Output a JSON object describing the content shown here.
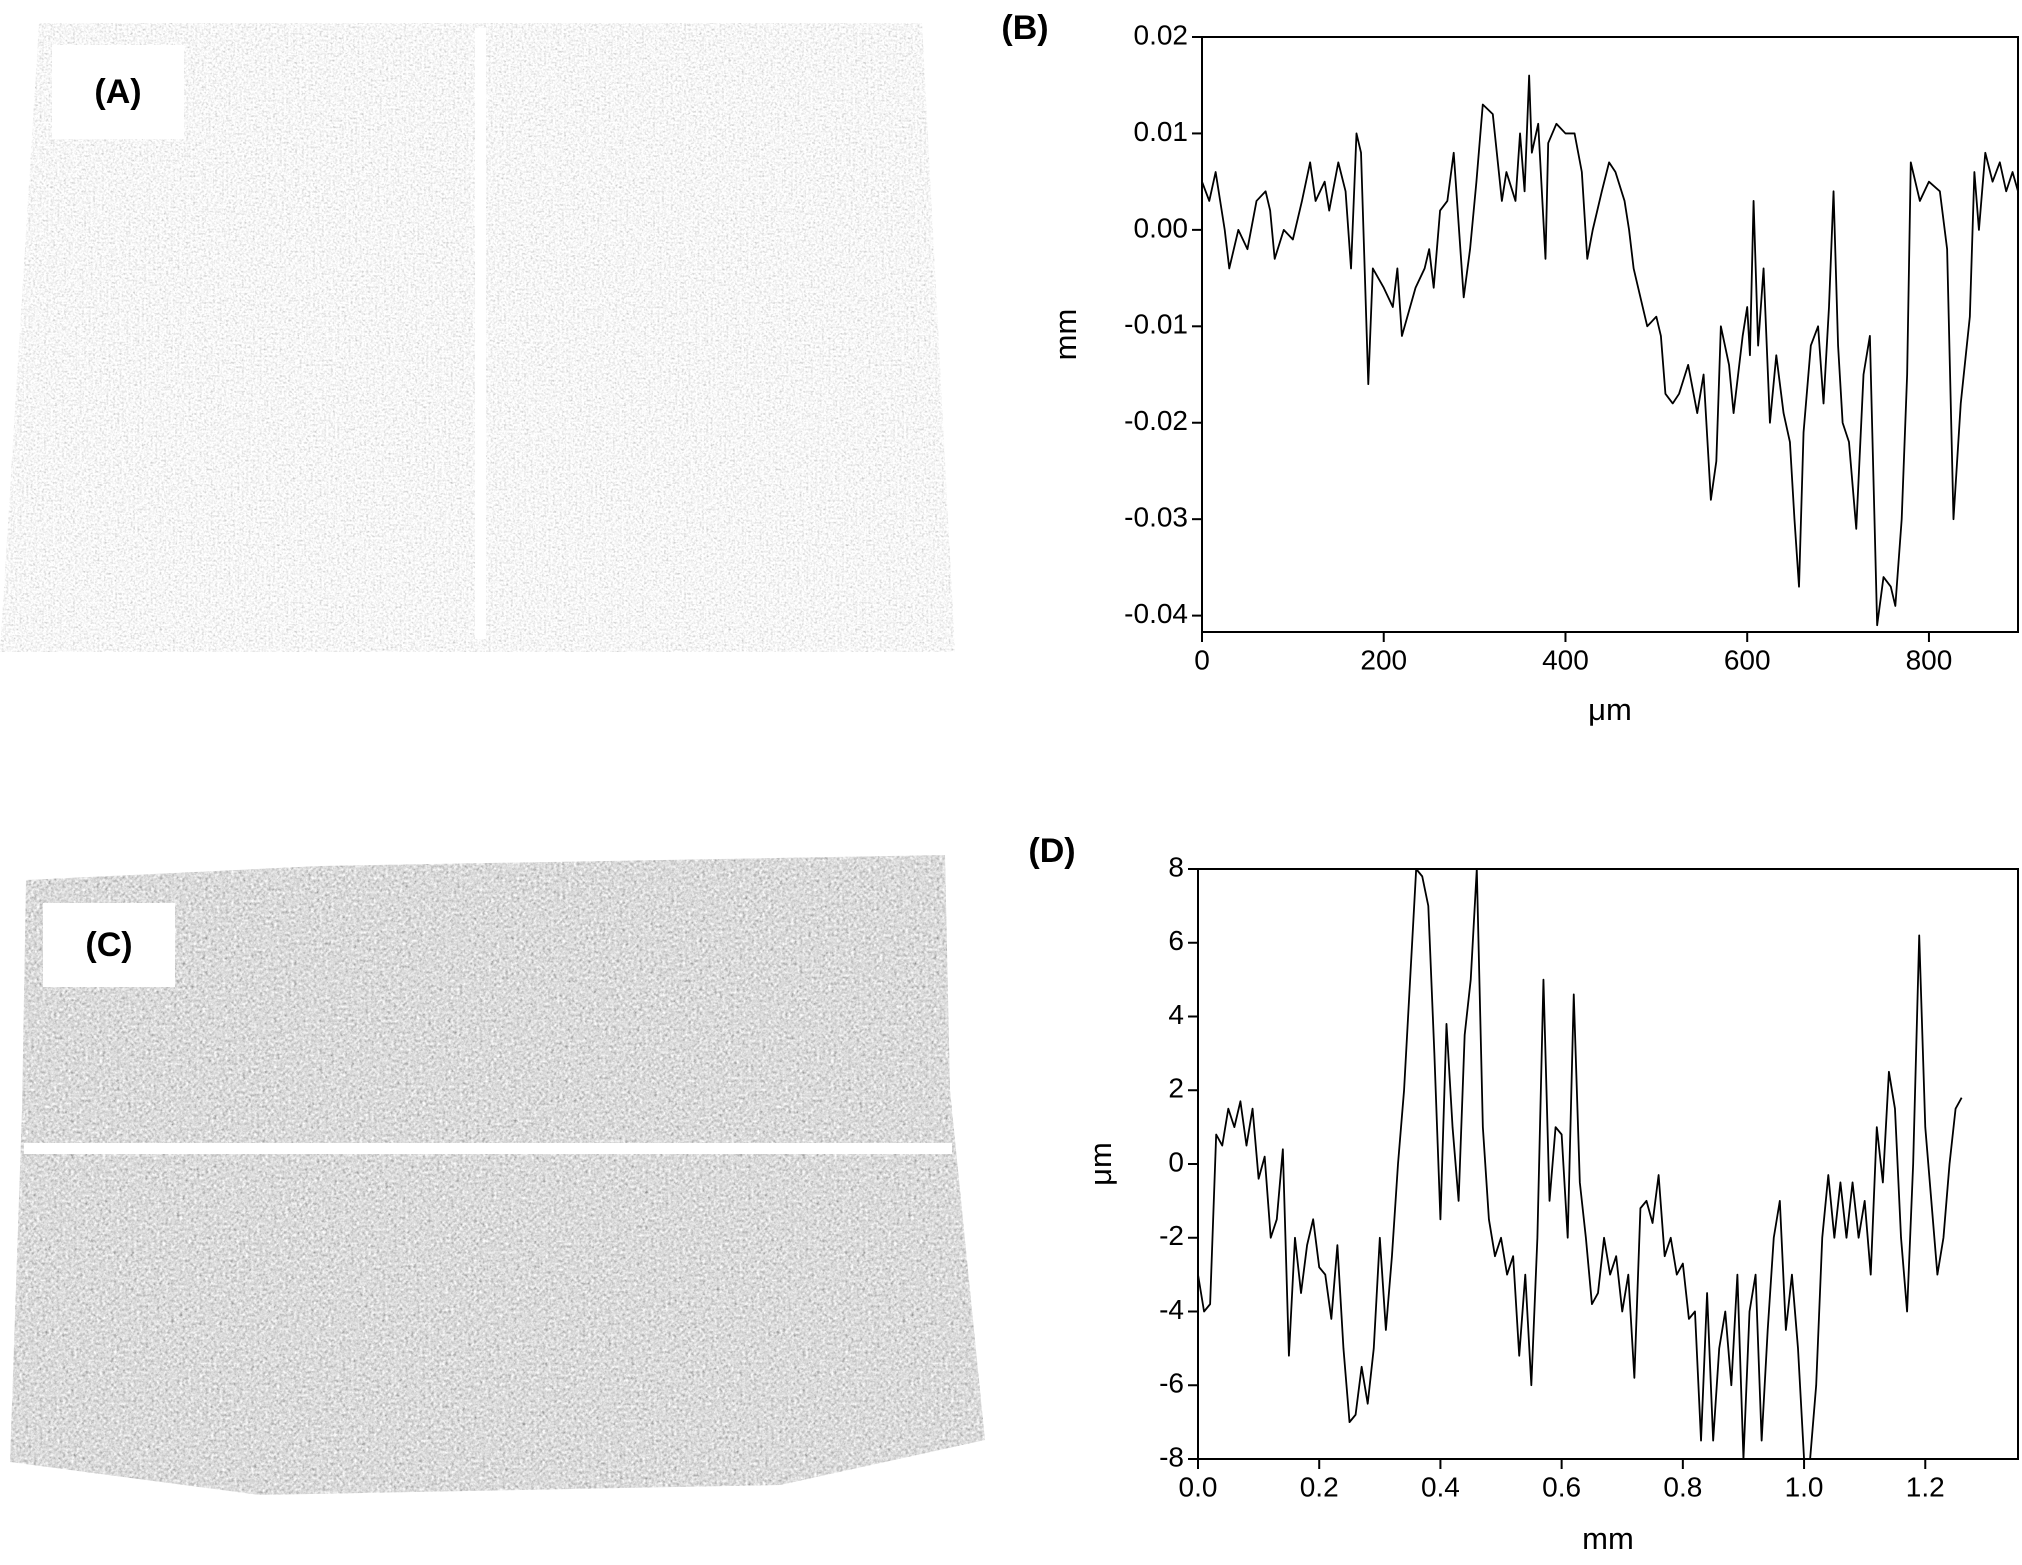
{
  "panels": [
    {
      "label": "(A)"
    },
    {
      "label": "(C)"
    }
  ],
  "chart_data": [
    {
      "type": "line",
      "title": "(B)",
      "xlabel": "μm",
      "ylabel": "mm",
      "color": "#000000",
      "xlim": [
        0,
        898
      ],
      "ylim": [
        -0.0417,
        0.02
      ],
      "xticks": [
        0,
        200,
        400,
        600,
        800
      ],
      "yticks": [
        0.02,
        0.01,
        {
          "value": 0,
          "label": "0.00"
        },
        -0.01,
        -0.02,
        -0.03,
        -0.04
      ],
      "x": [
        0,
        8,
        15,
        25,
        30,
        40,
        50,
        60,
        70,
        75,
        80,
        90,
        100,
        110,
        119,
        125,
        135,
        140,
        150,
        158,
        164,
        170,
        175,
        183,
        188,
        200,
        210,
        215,
        220,
        235,
        245,
        250,
        255,
        262,
        270,
        277,
        288,
        295,
        302,
        309,
        320,
        330,
        335,
        345,
        350,
        355,
        360,
        363,
        370,
        378,
        381,
        390,
        400,
        410,
        418,
        424,
        430,
        440,
        448,
        455,
        465,
        470,
        475,
        485,
        490,
        500,
        505,
        510,
        518,
        525,
        535,
        545,
        552,
        560,
        566,
        571,
        580,
        585,
        595,
        600,
        603,
        607,
        612,
        618,
        625,
        632,
        640,
        647,
        652,
        657,
        662,
        670,
        678,
        684,
        690,
        695,
        700,
        705,
        712,
        720,
        728,
        735,
        743,
        750,
        758,
        763,
        770,
        776,
        780,
        790,
        800,
        812,
        820,
        827,
        835,
        845,
        850,
        855,
        862,
        870,
        878,
        885,
        892,
        898
      ],
      "values": [
        0.005,
        0.003,
        0.006,
        0.0,
        -0.004,
        0.0,
        -0.002,
        0.003,
        0.004,
        0.002,
        -0.003,
        0.0,
        -0.001,
        0.003,
        0.007,
        0.003,
        0.005,
        0.002,
        0.007,
        0.004,
        -0.004,
        0.01,
        0.008,
        -0.016,
        -0.004,
        -0.006,
        -0.008,
        -0.004,
        -0.011,
        -0.006,
        -0.004,
        -0.002,
        -0.006,
        0.002,
        0.003,
        0.008,
        -0.007,
        -0.002,
        0.005,
        0.013,
        0.012,
        0.003,
        0.006,
        0.003,
        0.01,
        0.004,
        0.016,
        0.008,
        0.011,
        -0.003,
        0.009,
        0.011,
        0.01,
        0.01,
        0.006,
        -0.003,
        0.0,
        0.004,
        0.007,
        0.006,
        0.003,
        0.0,
        -0.004,
        -0.008,
        -0.01,
        -0.009,
        -0.011,
        -0.017,
        -0.018,
        -0.017,
        -0.014,
        -0.019,
        -0.015,
        -0.028,
        -0.024,
        -0.01,
        -0.014,
        -0.019,
        -0.011,
        -0.008,
        -0.013,
        0.003,
        -0.012,
        -0.004,
        -0.02,
        -0.013,
        -0.019,
        -0.022,
        -0.03,
        -0.037,
        -0.021,
        -0.012,
        -0.01,
        -0.018,
        -0.008,
        0.004,
        -0.012,
        -0.02,
        -0.022,
        -0.031,
        -0.015,
        -0.011,
        -0.041,
        -0.036,
        -0.037,
        -0.039,
        -0.03,
        -0.015,
        0.007,
        0.003,
        0.005,
        0.004,
        -0.002,
        -0.03,
        -0.018,
        -0.009,
        0.006,
        0.0,
        0.008,
        0.005,
        0.007,
        0.004,
        0.006,
        0.004
      ]
    },
    {
      "type": "line",
      "title": "(D)",
      "xlabel": "mm",
      "ylabel": "μm",
      "color": "#000000",
      "xlim": [
        0,
        1.353
      ],
      "ylim": [
        -8,
        8
      ],
      "xticks": [
        {
          "value": 0,
          "label": "0.0"
        },
        0.2,
        0.4,
        0.6,
        0.8,
        {
          "value": 1,
          "label": "1.0"
        },
        1.2
      ],
      "yticks": [
        8,
        6,
        4,
        2,
        0,
        -2,
        -4,
        -6,
        -8
      ],
      "x": [
        0,
        0.01,
        0.02,
        0.03,
        0.04,
        0.05,
        0.06,
        0.07,
        0.08,
        0.09,
        0.1,
        0.11,
        0.12,
        0.13,
        0.14,
        0.15,
        0.16,
        0.17,
        0.18,
        0.19,
        0.2,
        0.21,
        0.22,
        0.23,
        0.24,
        0.25,
        0.26,
        0.27,
        0.28,
        0.29,
        0.3,
        0.31,
        0.32,
        0.33,
        0.34,
        0.35,
        0.36,
        0.37,
        0.38,
        0.39,
        0.4,
        0.41,
        0.42,
        0.43,
        0.44,
        0.45,
        0.46,
        0.47,
        0.48,
        0.49,
        0.5,
        0.51,
        0.52,
        0.53,
        0.54,
        0.55,
        0.56,
        0.57,
        0.58,
        0.59,
        0.6,
        0.61,
        0.62,
        0.63,
        0.64,
        0.65,
        0.66,
        0.67,
        0.68,
        0.69,
        0.7,
        0.71,
        0.72,
        0.73,
        0.74,
        0.75,
        0.76,
        0.77,
        0.78,
        0.79,
        0.8,
        0.81,
        0.82,
        0.83,
        0.84,
        0.85,
        0.86,
        0.87,
        0.88,
        0.89,
        0.9,
        0.91,
        0.92,
        0.93,
        0.94,
        0.95,
        0.96,
        0.97,
        0.98,
        0.99,
        1.0,
        1.01,
        1.02,
        1.03,
        1.04,
        1.05,
        1.06,
        1.07,
        1.08,
        1.09,
        1.1,
        1.11,
        1.12,
        1.13,
        1.14,
        1.15,
        1.16,
        1.17,
        1.18,
        1.19,
        1.2,
        1.21,
        1.22,
        1.23,
        1.24,
        1.25,
        1.26
      ],
      "values": [
        -3,
        -4,
        -3.8,
        0.8,
        0.5,
        1.5,
        1.0,
        1.7,
        0.5,
        1.5,
        -0.4,
        0.2,
        -2,
        -1.5,
        0.4,
        -5.2,
        -2,
        -3.5,
        -2.2,
        -1.5,
        -2.8,
        -3.0,
        -4.2,
        -2.2,
        -5,
        -7,
        -6.8,
        -5.5,
        -6.5,
        -5,
        -2,
        -4.5,
        -2.5,
        0,
        2,
        5,
        8,
        7.8,
        7,
        3,
        -1.5,
        3.8,
        1,
        -1,
        3.5,
        5,
        8,
        1,
        -1.5,
        -2.5,
        -2,
        -3,
        -2.5,
        -5.2,
        -3,
        -6,
        -2,
        5,
        -1,
        1,
        0.8,
        -2,
        4.6,
        -0.5,
        -2,
        -3.8,
        -3.5,
        -2,
        -3,
        -2.5,
        -4,
        -3,
        -5.8,
        -1.2,
        -1,
        -1.6,
        -0.3,
        -2.5,
        -2,
        -3,
        -2.7,
        -4.2,
        -4,
        -7.5,
        -3.5,
        -7.5,
        -5,
        -4,
        -6,
        -3,
        -8,
        -4,
        -3,
        -7.5,
        -4.5,
        -2,
        -1,
        -4.5,
        -3,
        -5,
        -8,
        -8,
        -6,
        -2,
        -0.3,
        -2,
        -0.5,
        -2,
        -0.5,
        -2,
        -1,
        -3,
        1,
        -0.5,
        2.5,
        1.5,
        -2,
        -4,
        0,
        6.2,
        1,
        -1,
        -3,
        -2,
        0,
        1.5,
        1.8
      ]
    }
  ]
}
